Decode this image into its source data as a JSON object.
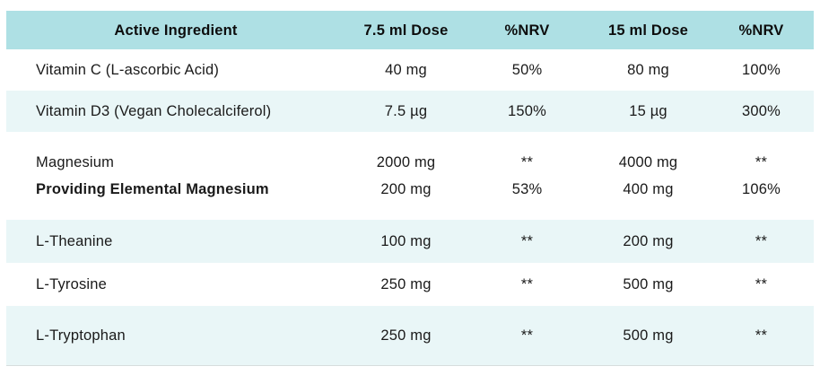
{
  "colors": {
    "header_bg": "#aee0e4",
    "alt_row_bg": "#e9f6f7",
    "header_text": "#0d0d0d",
    "text": "#1a1a1a"
  },
  "table": {
    "headers": [
      "Active Ingredient",
      "7.5 ml Dose",
      "%NRV",
      "15 ml Dose",
      "%NRV"
    ],
    "rows": [
      {
        "ingredient": "Vitamin C (L-ascorbic Acid)",
        "dose_7_5": "40 mg",
        "nrv_7_5": "50%",
        "dose_15": "80 mg",
        "nrv_15": "100%"
      },
      {
        "ingredient": "Vitamin D3 (Vegan Cholecalciferol)",
        "dose_7_5": "7.5 µg",
        "nrv_7_5": "150%",
        "dose_15": "15 µg",
        "nrv_15": "300%"
      },
      {
        "ingredient": "Magnesium",
        "ingredient_sub": "Providing Elemental Magnesium",
        "dose_7_5": "2000 mg",
        "dose_7_5_sub": "200 mg",
        "nrv_7_5": "**",
        "nrv_7_5_sub": "53%",
        "dose_15": "4000 mg",
        "dose_15_sub": "400 mg",
        "nrv_15": "**",
        "nrv_15_sub": "106%"
      },
      {
        "ingredient": "L-Theanine",
        "dose_7_5": "100 mg",
        "nrv_7_5": "**",
        "dose_15": "200 mg",
        "nrv_15": "**"
      },
      {
        "ingredient": "L-Tyrosine",
        "dose_7_5": "250 mg",
        "nrv_7_5": "**",
        "dose_15": "500 mg",
        "nrv_15": "**"
      },
      {
        "ingredient": "L-Tryptophan",
        "dose_7_5": "250 mg",
        "nrv_7_5": "**",
        "dose_15": "500 mg",
        "nrv_15": "**"
      }
    ]
  }
}
